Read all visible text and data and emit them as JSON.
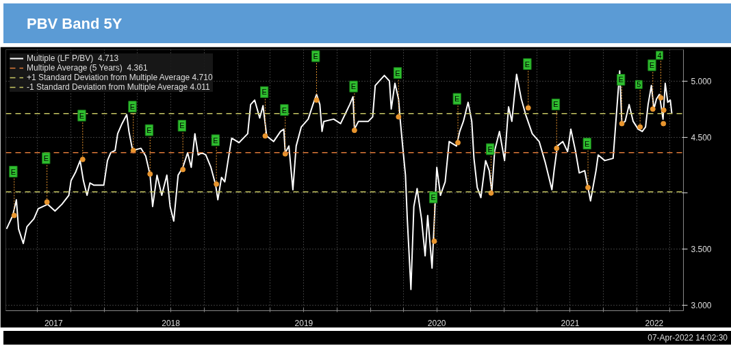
{
  "chart_data": {
    "type": "line",
    "title": "PBV Band 5Y",
    "x": [
      "2017-04-07",
      "2017-04-24",
      "2017-05-04",
      "2017-05-10",
      "2017-05-23",
      "2017-06-02",
      "2017-06-21",
      "2017-07-03",
      "2017-07-29",
      "2017-08-18",
      "2017-09-06",
      "2017-09-25",
      "2017-10-01",
      "2017-10-14",
      "2017-10-26",
      "2017-11-04",
      "2017-11-14",
      "2017-11-22",
      "2017-12-03",
      "2017-12-30",
      "2018-01-09",
      "2018-01-18",
      "2018-01-30",
      "2018-02-06",
      "2018-02-18",
      "2018-03-03",
      "2018-03-09",
      "2018-03-19",
      "2018-04-11",
      "2018-04-24",
      "2018-05-06",
      "2018-05-13",
      "2018-05-25",
      "2018-06-07",
      "2018-06-21",
      "2018-06-30",
      "2018-07-10",
      "2018-07-22",
      "2018-08-04",
      "2018-08-17",
      "2018-08-27",
      "2018-09-06",
      "2018-09-15",
      "2018-09-25",
      "2018-10-06",
      "2018-10-20",
      "2018-11-02",
      "2018-11-08",
      "2018-11-18",
      "2018-11-27",
      "2018-12-07",
      "2018-12-16",
      "2019-01-05",
      "2019-01-29",
      "2019-02-06",
      "2019-02-17",
      "2019-03-03",
      "2019-03-12",
      "2019-03-22",
      "2019-04-10",
      "2019-04-29",
      "2019-05-08",
      "2019-05-12",
      "2019-05-22",
      "2019-06-02",
      "2019-06-11",
      "2019-06-25",
      "2019-07-14",
      "2019-07-27",
      "2019-08-06",
      "2019-08-15",
      "2019-08-21",
      "2019-08-26",
      "2019-09-22",
      "2019-10-11",
      "2019-11-05",
      "2019-11-14",
      "2019-11-18",
      "2019-11-29",
      "2019-12-26",
      "2020-01-07",
      "2020-01-14",
      "2020-02-08",
      "2020-02-22",
      "2020-02-27",
      "2020-03-08",
      "2020-03-18",
      "2020-03-23",
      "2020-03-31",
      "2020-04-06",
      "2020-04-11",
      "2020-04-21",
      "2020-04-29",
      "2020-05-08",
      "2020-05-20",
      "2020-05-30",
      "2020-06-06",
      "2020-06-18",
      "2020-06-25",
      "2020-07-01",
      "2020-07-11",
      "2020-07-24",
      "2020-08-04",
      "2020-08-24",
      "2020-09-02",
      "2020-09-12",
      "2020-09-25",
      "2020-10-05",
      "2020-10-11",
      "2020-10-20",
      "2020-10-30",
      "2020-11-12",
      "2020-11-22",
      "2020-11-29",
      "2020-12-07",
      "2020-12-20",
      "2021-01-03",
      "2021-01-14",
      "2021-01-23",
      "2021-02-05",
      "2021-02-18",
      "2021-03-02",
      "2021-03-20",
      "2021-04-08",
      "2021-04-25",
      "2021-05-13",
      "2021-05-19",
      "2021-05-28",
      "2021-06-12",
      "2021-06-25",
      "2021-07-04",
      "2021-07-17",
      "2021-07-27",
      "2021-08-11",
      "2021-08-27",
      "2021-09-11",
      "2021-09-17",
      "2021-10-05",
      "2021-10-28",
      "2021-11-06",
      "2021-11-15",
      "2021-11-21",
      "2021-11-30",
      "2021-12-11",
      "2021-12-22",
      "2022-01-05",
      "2022-01-16",
      "2022-01-25",
      "2022-02-01",
      "2022-02-10",
      "2022-02-17",
      "2022-02-24",
      "2022-03-04",
      "2022-03-14",
      "2022-03-20",
      "2022-03-27",
      "2022-04-03",
      "2022-04-07"
    ],
    "series": [
      {
        "name": "Multiple (LF P/BV)  4.713",
        "color": "#ffffff",
        "values": [
          3.68,
          3.8,
          3.94,
          3.68,
          3.55,
          3.7,
          3.77,
          3.86,
          3.9,
          3.84,
          3.9,
          3.98,
          4.11,
          4.19,
          4.29,
          4.11,
          3.98,
          4.09,
          4.07,
          4.07,
          4.29,
          4.36,
          4.38,
          4.53,
          4.62,
          4.7,
          4.55,
          4.38,
          4.4,
          4.33,
          4.16,
          3.88,
          4.16,
          3.98,
          4.16,
          3.88,
          3.75,
          4.16,
          4.23,
          4.36,
          4.23,
          4.53,
          4.34,
          4.36,
          4.34,
          4.23,
          4.07,
          3.94,
          4.14,
          4.1,
          4.31,
          4.49,
          4.45,
          4.53,
          4.79,
          4.83,
          4.67,
          4.78,
          4.51,
          4.46,
          4.55,
          4.57,
          4.36,
          4.42,
          4.03,
          4.42,
          4.59,
          4.66,
          4.79,
          4.88,
          4.79,
          4.55,
          4.64,
          4.66,
          4.62,
          4.79,
          4.86,
          4.57,
          4.64,
          4.64,
          4.68,
          4.96,
          5.05,
          5.0,
          4.75,
          4.98,
          4.84,
          4.64,
          4.36,
          4.16,
          3.77,
          3.14,
          3.88,
          4.04,
          3.77,
          3.44,
          3.8,
          3.33,
          3.81,
          4.23,
          3.98,
          4.1,
          4.46,
          4.42,
          4.55,
          4.64,
          4.81,
          4.64,
          4.31,
          4.05,
          3.96,
          4.29,
          4.2,
          4.01,
          4.38,
          4.55,
          4.29,
          4.77,
          4.64,
          5.06,
          4.84,
          4.7,
          4.53,
          4.46,
          4.27,
          4.03,
          4.2,
          4.42,
          4.46,
          4.37,
          4.57,
          4.37,
          4.18,
          4.2,
          3.93,
          4.2,
          4.34,
          4.29,
          4.31,
          4.7,
          5.09,
          4.62,
          4.64,
          4.79,
          4.64,
          4.57,
          4.55,
          4.59,
          4.79,
          4.96,
          4.75,
          4.84,
          4.88,
          4.66,
          4.98,
          4.81,
          4.83,
          4.713
        ]
      },
      {
        "type": "scatter",
        "color": "#e8952e",
        "marker": "circle",
        "x": [
          "2017-04-28",
          "2017-07-27",
          "2017-11-02",
          "2018-03-21",
          "2018-05-06",
          "2018-08-04",
          "2018-11-04",
          "2019-03-18",
          "2019-05-12",
          "2019-08-06",
          "2019-11-18",
          "2020-03-18",
          "2020-06-24",
          "2020-08-28",
          "2020-11-27",
          "2021-03-09",
          "2021-05-26",
          "2021-08-20",
          "2021-11-21",
          "2022-01-10",
          "2022-02-14",
          "2022-03-08",
          "2022-03-15",
          "2022-03-16"
        ],
        "values": [
          3.8,
          3.92,
          4.3,
          4.38,
          4.17,
          4.21,
          4.08,
          4.51,
          4.35,
          4.83,
          4.56,
          4.68,
          3.57,
          4.45,
          4.0,
          4.76,
          4.4,
          4.05,
          4.62,
          4.59,
          4.75,
          4.85,
          4.62,
          4.74
        ]
      }
    ],
    "ref_lines": [
      {
        "axis": "y",
        "value": 4.361,
        "label": "Multiple Average (5 Years)  4.361",
        "color": "#e07b39",
        "line_style": "dashed"
      },
      {
        "axis": "y",
        "value": 4.71,
        "label": "+1 Standard Deviation from Multiple Average 4.710",
        "color": "#c8c864",
        "line_style": "dashed"
      },
      {
        "axis": "y",
        "value": 4.011,
        "label": "-1 Standard Deviation from Multiple Average 4.011",
        "color": "#c8c864",
        "line_style": "dashed"
      }
    ],
    "xlim": [
      "2017-04-05",
      "2022-05-09"
    ],
    "xticks": [
      {
        "value": "2017-07-01",
        "label": null
      },
      {
        "value": "2017-10-01",
        "label": null
      },
      {
        "value": "2018-01-01",
        "label": null
      },
      {
        "value": "2018-04-01",
        "label": null
      },
      {
        "value": "2018-07-01",
        "label": null
      },
      {
        "value": "2018-10-01",
        "label": null
      },
      {
        "value": "2019-01-01",
        "label": null
      },
      {
        "value": "2019-04-01",
        "label": null
      },
      {
        "value": "2019-07-01",
        "label": null
      },
      {
        "value": "2019-10-01",
        "label": null
      },
      {
        "value": "2020-01-01",
        "label": null
      },
      {
        "value": "2020-04-01",
        "label": null
      },
      {
        "value": "2020-07-01",
        "label": null
      },
      {
        "value": "2020-10-01",
        "label": null
      },
      {
        "value": "2021-01-01",
        "label": null
      },
      {
        "value": "2021-04-01",
        "label": null
      },
      {
        "value": "2021-07-01",
        "label": null
      },
      {
        "value": "2021-10-01",
        "label": null
      },
      {
        "value": "2022-01-01",
        "label": null
      },
      {
        "value": "2022-04-01",
        "label": null
      },
      {
        "value": "2017-08-14",
        "label": "2017"
      },
      {
        "value": "2018-07-02",
        "label": "2018"
      },
      {
        "value": "2019-07-02",
        "label": "2019"
      },
      {
        "value": "2020-07-01",
        "label": "2020"
      },
      {
        "value": "2021-07-02",
        "label": "2021"
      },
      {
        "value": "2022-02-18",
        "label": "2022"
      }
    ],
    "ylim": [
      2.95,
      5.28
    ],
    "yticks": [
      {
        "value": 3,
        "label": "3.000"
      },
      {
        "value": 3.5,
        "label": "3.500"
      },
      {
        "value": 4,
        "label": null
      },
      {
        "value": 4.5,
        "label": "4.500"
      },
      {
        "value": 5,
        "label": "5.000"
      }
    ],
    "grid": true,
    "legend": "top left",
    "marker": "none",
    "line_style": "solid",
    "annotations": [
      {
        "text": "E",
        "x": "2017-04-28",
        "y": 3.8
      },
      {
        "text": "E",
        "x": "2017-07-27",
        "y": 3.92
      },
      {
        "text": "E",
        "x": "2017-11-02",
        "y": 4.3
      },
      {
        "text": "E",
        "x": "2018-03-21",
        "y": 4.38
      },
      {
        "text": "E",
        "x": "2018-05-06",
        "y": 4.17
      },
      {
        "text": "E",
        "x": "2018-08-04",
        "y": 4.21
      },
      {
        "text": "E",
        "x": "2018-11-04",
        "y": 4.08
      },
      {
        "text": "E",
        "x": "2019-03-18",
        "y": 4.51
      },
      {
        "text": "E",
        "x": "2019-05-12",
        "y": 4.35
      },
      {
        "text": "E",
        "x": "2019-08-06",
        "y": 4.83
      },
      {
        "text": "E",
        "x": "2019-11-18",
        "y": 4.56
      },
      {
        "text": "E",
        "x": "2020-03-18",
        "y": 4.68
      },
      {
        "text": "E",
        "x": "2020-06-24",
        "y": 3.57
      },
      {
        "text": "E",
        "x": "2020-08-28",
        "y": 4.45
      },
      {
        "text": "E",
        "x": "2020-11-27",
        "y": 4.0
      },
      {
        "text": "E",
        "x": "2021-03-09",
        "y": 4.76
      },
      {
        "text": "E",
        "x": "2021-05-26",
        "y": 4.4
      },
      {
        "text": "E",
        "x": "2021-08-20",
        "y": 4.05
      },
      {
        "text": "E",
        "x": "2021-11-21",
        "y": 4.62
      },
      {
        "text": "5",
        "x": "2022-01-10",
        "y": 4.59
      },
      {
        "text": "E",
        "x": "2022-02-14",
        "y": 4.75
      },
      {
        "text": "4",
        "x": "2022-03-08",
        "y": 4.85
      },
      "07-Apr-2022 14:02:30"
    ]
  }
}
